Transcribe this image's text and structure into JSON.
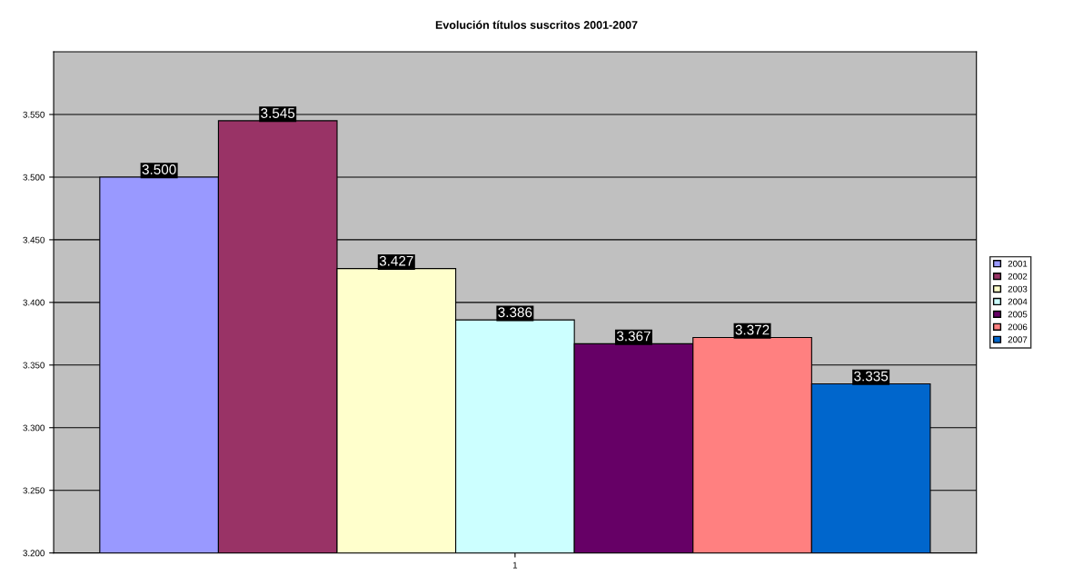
{
  "chart_data": {
    "type": "bar",
    "title": "Evolución títulos suscritos 2001-2007",
    "categories": [
      "1"
    ],
    "series": [
      {
        "name": "2001",
        "color": "#9999ff",
        "values": [
          3.5
        ],
        "value_labels": [
          "3.500"
        ]
      },
      {
        "name": "2002",
        "color": "#993366",
        "values": [
          3.545
        ],
        "value_labels": [
          "3.545"
        ]
      },
      {
        "name": "2003",
        "color": "#ffffcc",
        "values": [
          3.427
        ],
        "value_labels": [
          "3.427"
        ]
      },
      {
        "name": "2004",
        "color": "#ccffff",
        "values": [
          3.386
        ],
        "value_labels": [
          "3.386"
        ]
      },
      {
        "name": "2005",
        "color": "#660066",
        "values": [
          3.367
        ],
        "value_labels": [
          "3.367"
        ]
      },
      {
        "name": "2006",
        "color": "#ff8080",
        "values": [
          3.372
        ],
        "value_labels": [
          "3.372"
        ]
      },
      {
        "name": "2007",
        "color": "#0066cc",
        "values": [
          3.335
        ],
        "value_labels": [
          "3.335"
        ]
      }
    ],
    "ylim": [
      3.2,
      3.6
    ],
    "yticks": [
      {
        "value": 3.2,
        "label": "3.200"
      },
      {
        "value": 3.25,
        "label": "3.250"
      },
      {
        "value": 3.3,
        "label": "3.300"
      },
      {
        "value": 3.35,
        "label": "3.350"
      },
      {
        "value": 3.4,
        "label": "3.400"
      },
      {
        "value": 3.45,
        "label": "3.450"
      },
      {
        "value": 3.5,
        "label": "3.500"
      },
      {
        "value": 3.55,
        "label": "3.550"
      }
    ],
    "grid": "y",
    "legend": "right"
  }
}
